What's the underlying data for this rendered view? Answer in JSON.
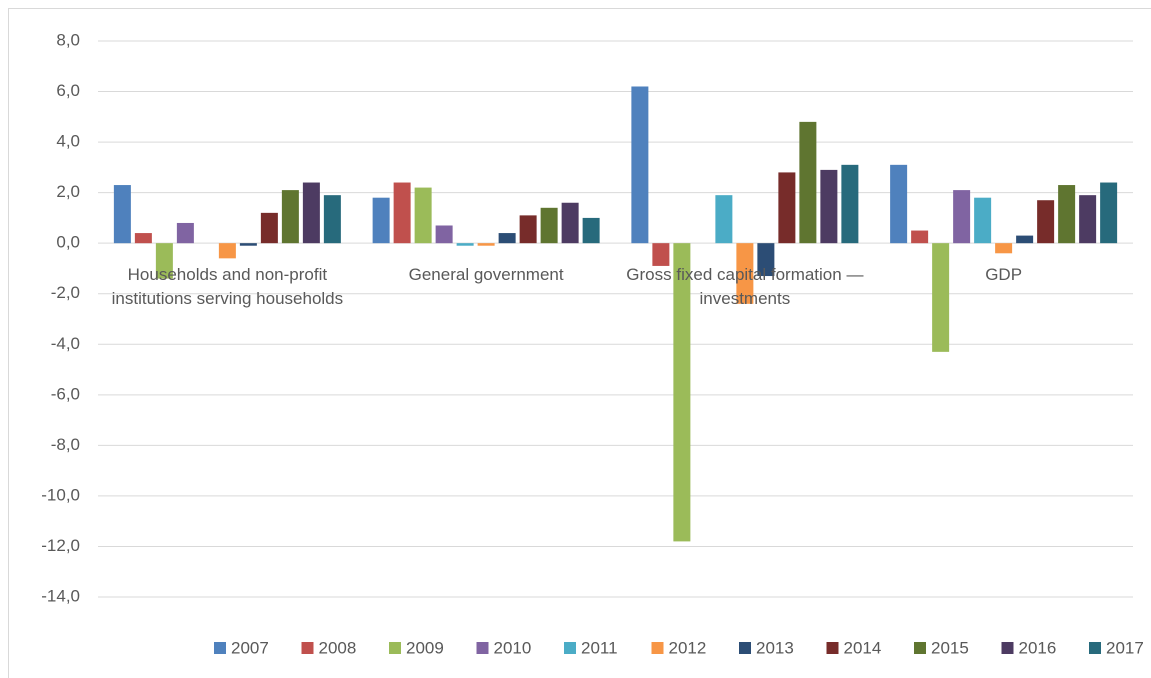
{
  "chart_data": {
    "type": "bar",
    "categories": [
      "Households and non-profit institutions serving households",
      "General government",
      "Gross fixed capital formation — investments",
      "GDP"
    ],
    "series": [
      {
        "name": "2007",
        "color": "#4f81bd",
        "values": [
          2.3,
          1.8,
          6.2,
          3.1
        ]
      },
      {
        "name": "2008",
        "color": "#c0504d",
        "values": [
          0.4,
          2.4,
          -0.9,
          0.5
        ]
      },
      {
        "name": "2009",
        "color": "#9bbb59",
        "values": [
          -1.4,
          2.2,
          -11.8,
          -4.3
        ]
      },
      {
        "name": "2010",
        "color": "#8064a2",
        "values": [
          0.8,
          0.7,
          0.0,
          2.1
        ]
      },
      {
        "name": "2011",
        "color": "#4bacc6",
        "values": [
          0.0,
          -0.1,
          1.9,
          1.8
        ]
      },
      {
        "name": "2012",
        "color": "#f79646",
        "values": [
          -0.6,
          -0.1,
          -2.4,
          -0.4
        ]
      },
      {
        "name": "2013",
        "color": "#2c4d75",
        "values": [
          -0.1,
          0.4,
          -1.3,
          0.3
        ]
      },
      {
        "name": "2014",
        "color": "#772c2a",
        "values": [
          1.2,
          1.1,
          2.8,
          1.7
        ]
      },
      {
        "name": "2015",
        "color": "#5f7530",
        "values": [
          2.1,
          1.4,
          4.8,
          2.3
        ]
      },
      {
        "name": "2016",
        "color": "#4d3b62",
        "values": [
          2.4,
          1.6,
          2.9,
          1.9
        ]
      },
      {
        "name": "2017",
        "color": "#276a7c",
        "values": [
          1.9,
          1.0,
          3.1,
          2.4
        ]
      }
    ],
    "ylim": [
      -14,
      8
    ],
    "yticks": [
      {
        "value": 8,
        "label": "8,0"
      },
      {
        "value": 6,
        "label": "6,0"
      },
      {
        "value": 4,
        "label": "4,0"
      },
      {
        "value": 2,
        "label": "2,0"
      },
      {
        "value": 0,
        "label": "0,0"
      },
      {
        "value": -2,
        "label": "-2,0"
      },
      {
        "value": -4,
        "label": "-4,0"
      },
      {
        "value": -6,
        "label": "-6,0"
      },
      {
        "value": -8,
        "label": "-8,0"
      },
      {
        "value": -10,
        "label": "-10,0"
      },
      {
        "value": -12,
        "label": "-12,0"
      },
      {
        "value": -14,
        "label": "-14,0"
      }
    ],
    "grid": true,
    "legend": "bottom"
  }
}
